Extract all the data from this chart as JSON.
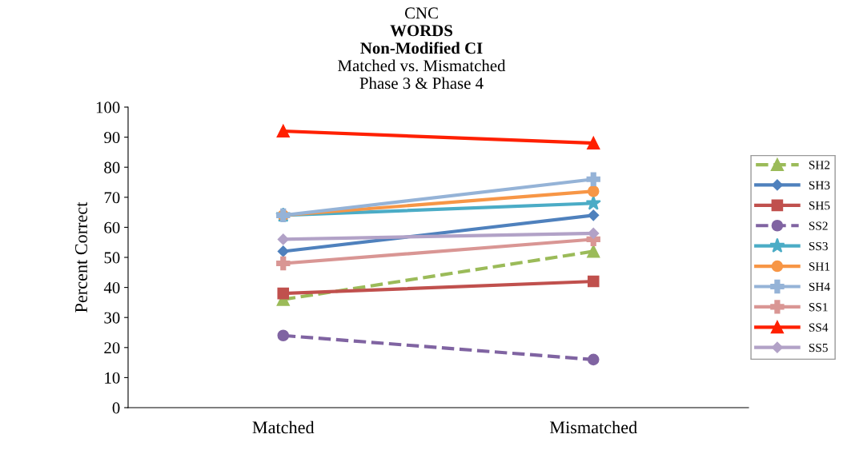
{
  "chart_data": {
    "type": "line",
    "title": "CNC\nWORDS\nNon-Modified CI",
    "subtitle": "Matched vs. Mismatched\nPhase 3 & Phase 4",
    "ylabel": "Percent Correct",
    "categories": [
      "Matched",
      "Mismatched"
    ],
    "ylim": [
      0,
      100
    ],
    "yticks": [
      0,
      10,
      20,
      30,
      40,
      50,
      60,
      70,
      80,
      90,
      100
    ],
    "grid": false,
    "legend": "right",
    "series": [
      {
        "name": "SH2",
        "color": "#9bbb59",
        "values": [
          36,
          52
        ],
        "marker": "triangle",
        "line_style": "dashed"
      },
      {
        "name": "SH3",
        "color": "#4f81bd",
        "values": [
          52,
          64
        ],
        "marker": "diamond",
        "line_style": "solid"
      },
      {
        "name": "SH5",
        "color": "#c0504d",
        "values": [
          38,
          42
        ],
        "marker": "square",
        "line_style": "solid"
      },
      {
        "name": "SS2",
        "color": "#8064a2",
        "values": [
          24,
          16
        ],
        "marker": "circle",
        "line_style": "dashed"
      },
      {
        "name": "SS3",
        "color": "#4bacc6",
        "values": [
          64,
          68
        ],
        "marker": "star",
        "line_style": "solid"
      },
      {
        "name": "SH1",
        "color": "#f79646",
        "values": [
          64,
          72
        ],
        "marker": "circle",
        "line_style": "solid"
      },
      {
        "name": "SH4",
        "color": "#95b3d7",
        "values": [
          64,
          76
        ],
        "marker": "cross",
        "line_style": "solid"
      },
      {
        "name": "SS1",
        "color": "#d99694",
        "values": [
          48,
          56
        ],
        "marker": "cross",
        "line_style": "solid"
      },
      {
        "name": "SS4",
        "color": "#ff2000",
        "values": [
          92,
          88
        ],
        "marker": "triangle",
        "line_style": "solid"
      },
      {
        "name": "SS5",
        "color": "#b2a2c7",
        "values": [
          56,
          58
        ],
        "marker": "diamond",
        "line_style": "solid"
      }
    ]
  }
}
